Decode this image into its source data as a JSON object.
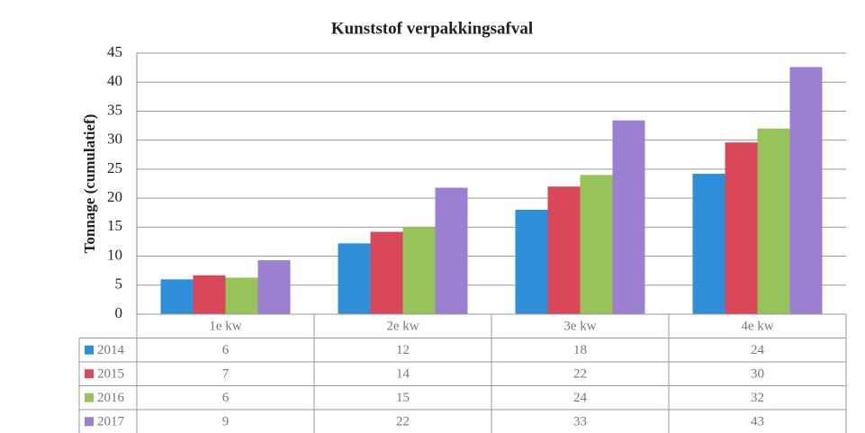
{
  "chart_data": {
    "type": "bar",
    "title": "Kunststof verpakkingsafval",
    "y_label": "Tonnage (cumulatief)",
    "categories": [
      "1e kw",
      "2e kw",
      "3e kw",
      "4e kw"
    ],
    "series": [
      {
        "name": "2014",
        "color": "#2e8fd8",
        "values": [
          6,
          12.2,
          18,
          24.2
        ],
        "value_labels": [
          "6",
          "12",
          "18",
          "24"
        ]
      },
      {
        "name": "2015",
        "color": "#d9475a",
        "values": [
          6.7,
          14.2,
          22,
          29.6
        ],
        "value_labels": [
          "7",
          "14",
          "22",
          "30"
        ]
      },
      {
        "name": "2016",
        "color": "#97c35a",
        "values": [
          6.3,
          15,
          24,
          32
        ],
        "value_labels": [
          "6",
          "15",
          "24",
          "32"
        ]
      },
      {
        "name": "2017",
        "color": "#9b7fd0",
        "values": [
          9.3,
          21.8,
          33.4,
          42.6
        ],
        "value_labels": [
          "9",
          "22",
          "33",
          "43"
        ]
      }
    ],
    "ylim": [
      0,
      45
    ],
    "yticks": [
      0,
      5,
      10,
      15,
      20,
      25,
      30,
      35,
      40,
      45
    ],
    "grid": true
  }
}
